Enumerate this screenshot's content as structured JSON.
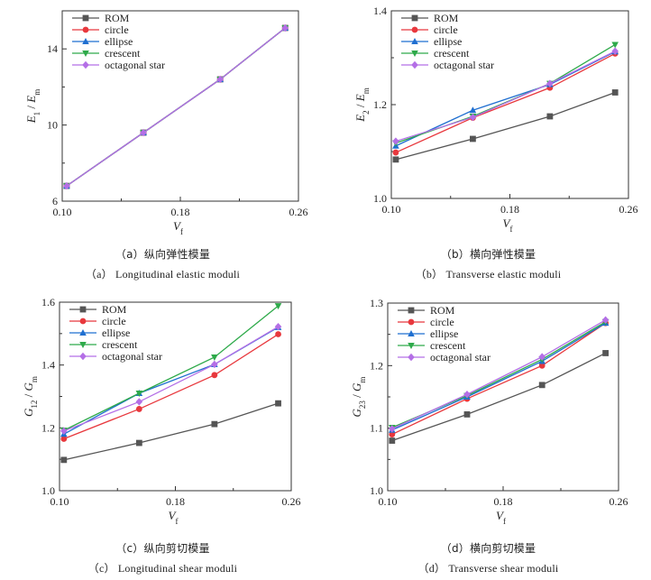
{
  "figure": {
    "panels": [
      {
        "caption_cn": "（a）纵向弹性模量",
        "caption_en": "（a） Longitudinal elastic moduli"
      },
      {
        "caption_cn": "（b）横向弹性模量",
        "caption_en": "（b） Transverse elastic moduli"
      },
      {
        "caption_cn": "（c）纵向剪切模量",
        "caption_en": "（c） Longitudinal shear moduli"
      },
      {
        "caption_cn": "（d）横向剪切模量",
        "caption_en": "（d） Transverse shear moduli"
      }
    ]
  },
  "chart_data": [
    {
      "type": "line",
      "xlabel": "V_f",
      "ylabel": "E_1 / E_m",
      "xlim": [
        0.1,
        0.26
      ],
      "ylim": [
        6,
        16
      ],
      "xticks": [
        0.1,
        0.18,
        0.26
      ],
      "xtick_labels": [
        "0.10",
        "0.18",
        "0.26"
      ],
      "yticks": [
        6,
        10,
        14
      ],
      "ytick_labels": [
        "6",
        "10",
        "14"
      ],
      "x": [
        0.103,
        0.155,
        0.207,
        0.251
      ],
      "legend_position": "top-left",
      "series": [
        {
          "name": "ROM",
          "color": "#555555",
          "marker": "square",
          "values": [
            6.8,
            9.6,
            12.4,
            15.1
          ]
        },
        {
          "name": "circle",
          "color": "#e8383d",
          "marker": "circle",
          "values": [
            6.8,
            9.6,
            12.4,
            15.1
          ]
        },
        {
          "name": "ellipse",
          "color": "#1f6fd0",
          "marker": "triangle-up",
          "values": [
            6.8,
            9.6,
            12.4,
            15.1
          ]
        },
        {
          "name": "crescent",
          "color": "#2eaa4a",
          "marker": "triangle-down",
          "values": [
            6.8,
            9.6,
            12.4,
            15.1
          ]
        },
        {
          "name": "octagonal star",
          "color": "#b46fe6",
          "marker": "diamond",
          "values": [
            6.8,
            9.6,
            12.4,
            15.1
          ]
        }
      ]
    },
    {
      "type": "line",
      "xlabel": "V_f",
      "ylabel": "E_2 / E_m",
      "xlim": [
        0.1,
        0.26
      ],
      "ylim": [
        1.0,
        1.4
      ],
      "xticks": [
        0.1,
        0.18,
        0.26
      ],
      "xtick_labels": [
        "0.10",
        "0.18",
        "0.26"
      ],
      "yticks": [
        1.0,
        1.2,
        1.4
      ],
      "ytick_labels": [
        "1.0",
        "1.2",
        "1.4"
      ],
      "x": [
        0.103,
        0.155,
        0.207,
        0.251
      ],
      "legend_position": "top-left",
      "series": [
        {
          "name": "ROM",
          "color": "#555555",
          "marker": "square",
          "values": [
            1.083,
            1.127,
            1.175,
            1.226
          ]
        },
        {
          "name": "circle",
          "color": "#e8383d",
          "marker": "circle",
          "values": [
            1.098,
            1.172,
            1.236,
            1.309
          ]
        },
        {
          "name": "ellipse",
          "color": "#1f6fd0",
          "marker": "triangle-up",
          "values": [
            1.112,
            1.188,
            1.243,
            1.313
          ]
        },
        {
          "name": "crescent",
          "color": "#2eaa4a",
          "marker": "triangle-down",
          "values": [
            1.118,
            1.175,
            1.245,
            1.328
          ]
        },
        {
          "name": "octagonal star",
          "color": "#b46fe6",
          "marker": "diamond",
          "values": [
            1.122,
            1.173,
            1.245,
            1.314
          ]
        }
      ]
    },
    {
      "type": "line",
      "xlabel": "V_f",
      "ylabel": "G_12 / G_m",
      "xlim": [
        0.1,
        0.26
      ],
      "ylim": [
        1.0,
        1.6
      ],
      "xticks": [
        0.1,
        0.18,
        0.26
      ],
      "xtick_labels": [
        "0.10",
        "0.18",
        "0.26"
      ],
      "yticks": [
        1.0,
        1.2,
        1.4,
        1.6
      ],
      "ytick_labels": [
        "1.0",
        "1.2",
        "1.4",
        "1.6"
      ],
      "x": [
        0.103,
        0.155,
        0.207,
        0.251
      ],
      "legend_position": "top-left",
      "series": [
        {
          "name": "ROM",
          "color": "#555555",
          "marker": "square",
          "values": [
            1.098,
            1.152,
            1.212,
            1.278
          ]
        },
        {
          "name": "circle",
          "color": "#e8383d",
          "marker": "circle",
          "values": [
            1.165,
            1.26,
            1.368,
            1.498
          ]
        },
        {
          "name": "ellipse",
          "color": "#1f6fd0",
          "marker": "triangle-up",
          "values": [
            1.18,
            1.31,
            1.402,
            1.52
          ]
        },
        {
          "name": "crescent",
          "color": "#2eaa4a",
          "marker": "triangle-down",
          "values": [
            1.192,
            1.31,
            1.425,
            1.588
          ]
        },
        {
          "name": "octagonal star",
          "color": "#b46fe6",
          "marker": "diamond",
          "values": [
            1.19,
            1.283,
            1.402,
            1.522
          ]
        }
      ]
    },
    {
      "type": "line",
      "xlabel": "V_f",
      "ylabel": "G_23 / G_m",
      "xlim": [
        0.1,
        0.26
      ],
      "ylim": [
        1.0,
        1.3
      ],
      "xticks": [
        0.1,
        0.18,
        0.26
      ],
      "xtick_labels": [
        "0.10",
        "0.18",
        "0.26"
      ],
      "yticks": [
        1.0,
        1.1,
        1.2,
        1.3
      ],
      "ytick_labels": [
        "1.0",
        "1.1",
        "1.2",
        "1.3"
      ],
      "x": [
        0.103,
        0.155,
        0.207,
        0.251
      ],
      "legend_position": "top-left",
      "series": [
        {
          "name": "ROM",
          "color": "#555555",
          "marker": "square",
          "values": [
            1.08,
            1.122,
            1.169,
            1.22
          ]
        },
        {
          "name": "circle",
          "color": "#e8383d",
          "marker": "circle",
          "values": [
            1.09,
            1.147,
            1.2,
            1.268
          ]
        },
        {
          "name": "ellipse",
          "color": "#1f6fd0",
          "marker": "triangle-up",
          "values": [
            1.097,
            1.15,
            1.207,
            1.268
          ]
        },
        {
          "name": "crescent",
          "color": "#2eaa4a",
          "marker": "triangle-down",
          "values": [
            1.101,
            1.152,
            1.21,
            1.27
          ]
        },
        {
          "name": "octagonal star",
          "color": "#b46fe6",
          "marker": "diamond",
          "values": [
            1.099,
            1.154,
            1.214,
            1.273
          ]
        }
      ]
    }
  ]
}
